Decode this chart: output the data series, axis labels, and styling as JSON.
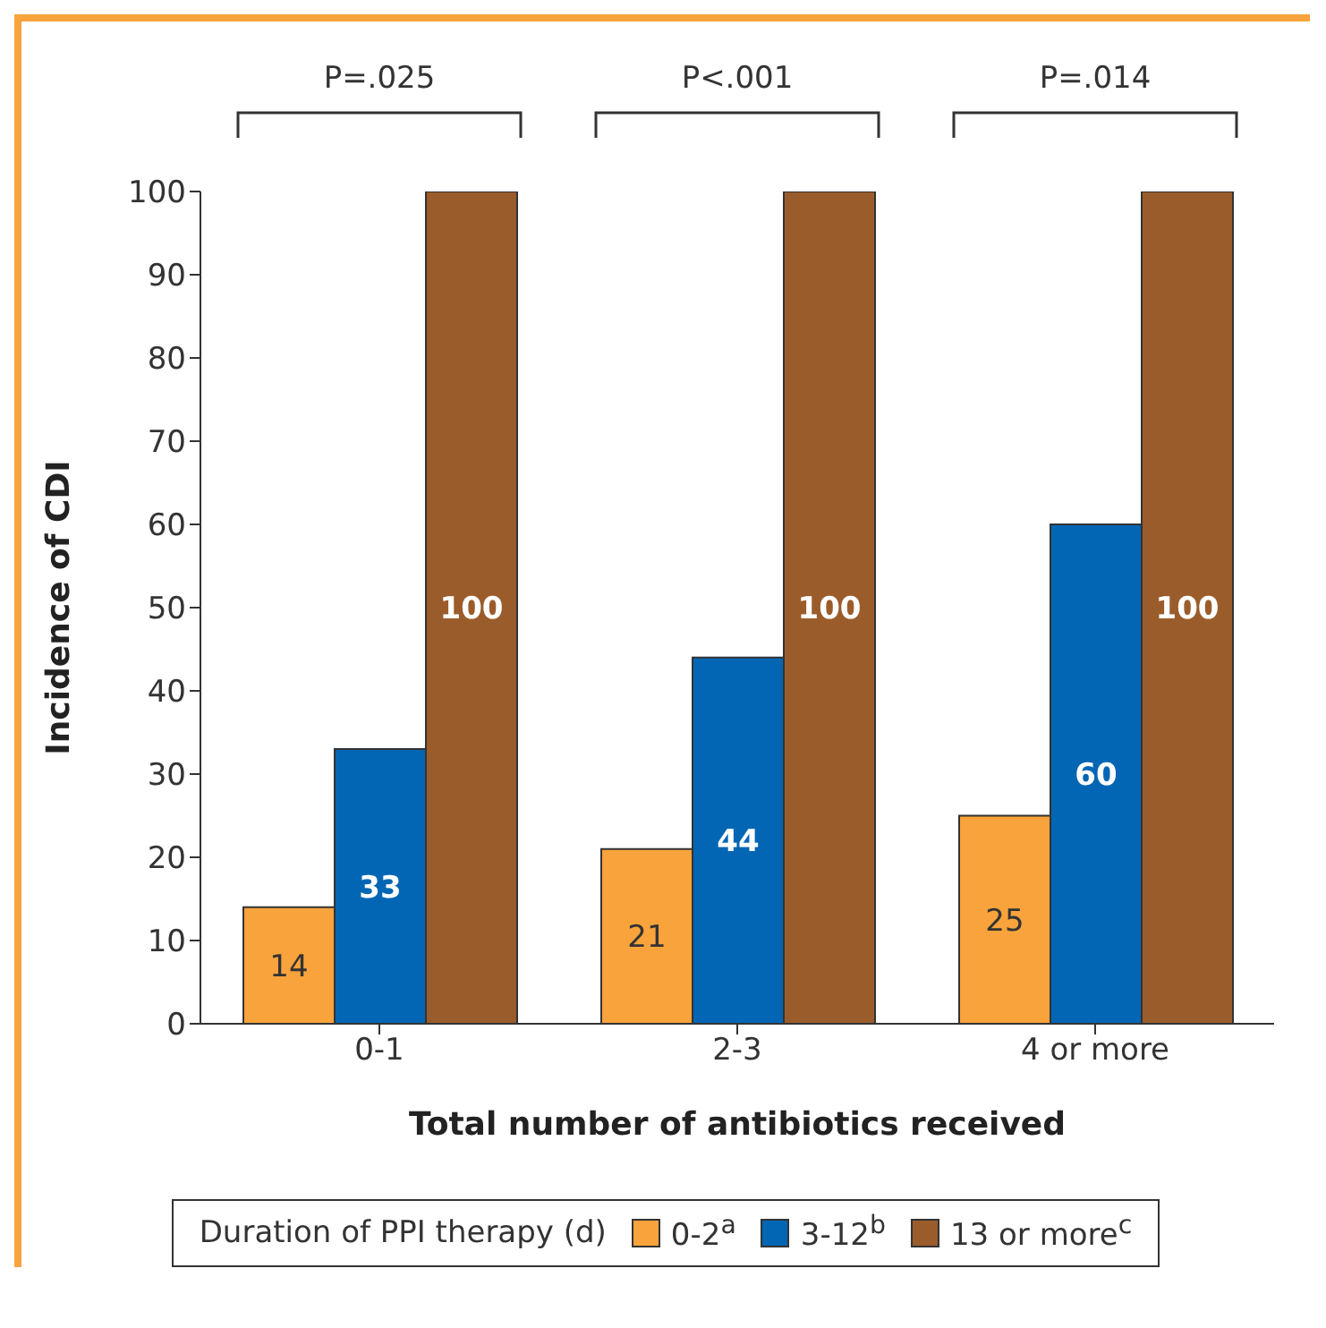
{
  "chart_data": {
    "type": "bar",
    "categories": [
      "0-1",
      "2-3",
      "4 or more"
    ],
    "series": [
      {
        "name": "0-2$^{a}$",
        "color": "#f8a33c",
        "values": [
          14,
          21,
          25
        ]
      },
      {
        "name": "3-12$^{b}$",
        "color": "#0366b4",
        "values": [
          33,
          44,
          60
        ]
      },
      {
        "name": "13 or more$^{c}$",
        "color": "#9b5c2b",
        "values": [
          100,
          100,
          100
        ]
      }
    ],
    "xlabel": "Total number of antibiotics received",
    "ylabel": "Incidence of CDI",
    "legend_title": "Duration of PPI therapy (d)",
    "legend": "bottom",
    "annotations": [
      "P=.025",
      "P<.001",
      "P=.014"
    ],
    "ylim": [
      0,
      100
    ],
    "yticks": [
      0,
      10,
      20,
      30,
      40,
      50,
      60,
      70,
      80,
      90,
      100
    ],
    "data_labels": true
  }
}
